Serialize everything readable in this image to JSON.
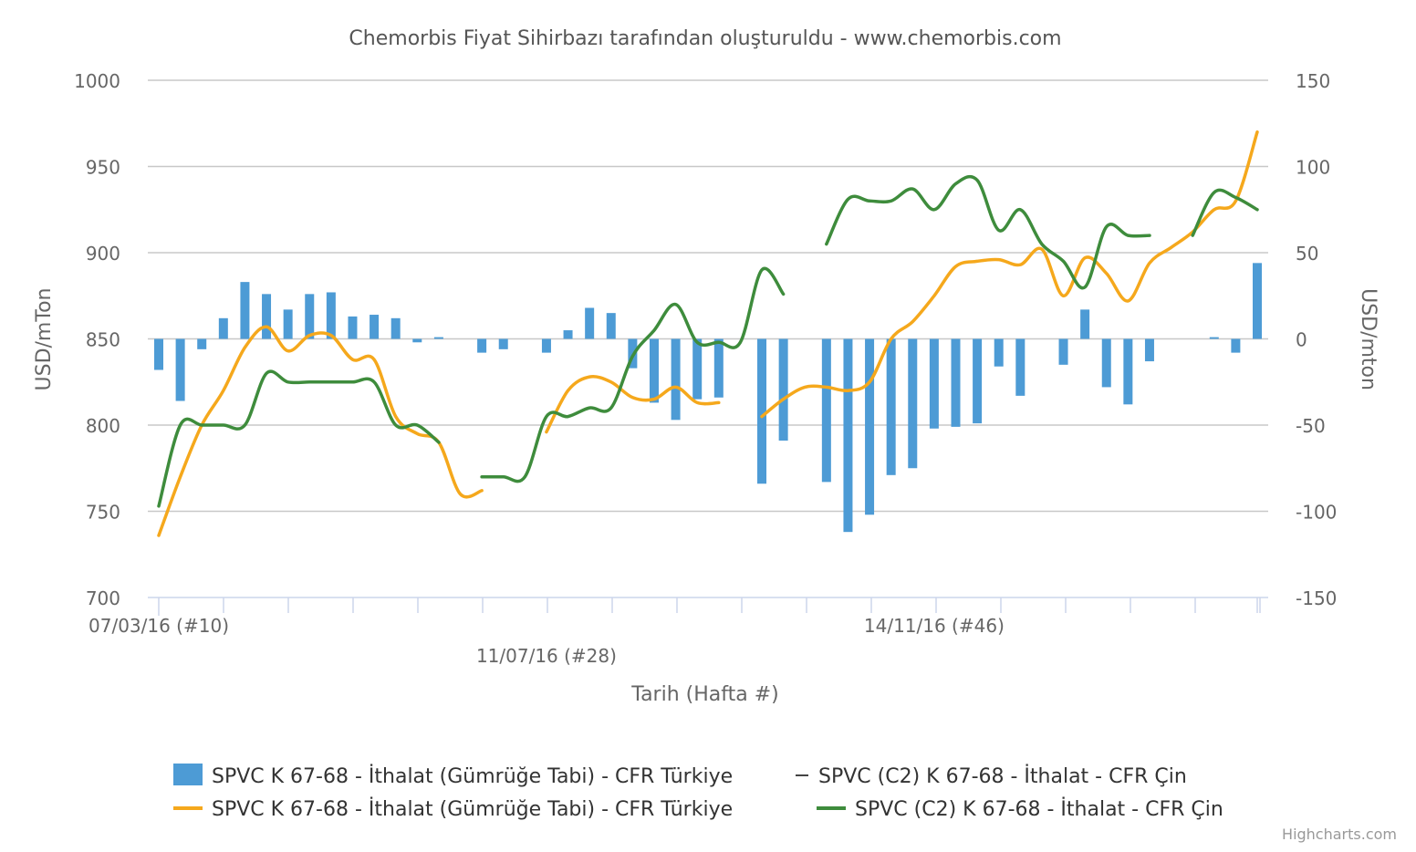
{
  "chart_data": {
    "type": "bar+line",
    "title": "Chemorbis Fiyat Sihirbazı tarafından oluşturuldu - www.chemorbis.com",
    "xlabel": "Tarih (Hafta #)",
    "ylabel_left": "USD/mTon",
    "ylabel_right": "USD/mton",
    "y_left_range": [
      700,
      1000
    ],
    "y_left_ticks": [
      "700",
      "750",
      "800",
      "850",
      "900",
      "950",
      "1000"
    ],
    "y_right_range": [
      -150,
      150
    ],
    "y_right_ticks": [
      "-150",
      "-100",
      "-50",
      "0",
      "50",
      "100",
      "150"
    ],
    "grid": true,
    "x_week_range": [
      10,
      61
    ],
    "x_tick_labels": [
      {
        "label": "07/03/16 (#10)",
        "week": 10
      },
      {
        "label": "11/07/16 (#28)",
        "week": 28
      },
      {
        "label": "14/11/16 (#46)",
        "week": 46
      }
    ],
    "legend": {
      "placement": "bottom",
      "items": [
        {
          "label": "SPVC K 67-68 - İthalat (Gümrüğe Tabi) - CFR Türkiye",
          "kind": "bar",
          "color": "#4d9bd5"
        },
        {
          "label": "SPVC (C2) K 67-68 - İthalat - CFR Çin",
          "kind": "dash",
          "color": "#444444"
        },
        {
          "label": "SPVC K 67-68 - İthalat (Gümrüğe Tabi) - CFR Türkiye",
          "kind": "line",
          "color": "#f5a81c"
        },
        {
          "label": "SPVC (C2) K 67-68 - İthalat - CFR Çin",
          "kind": "line",
          "color": "#3e8c3c"
        }
      ]
    },
    "credit": "Highcharts.com",
    "series": [
      {
        "name": "SPVC K 67-68 - İthalat (Gümrüğe Tabi) - CFR Türkiye",
        "type": "bar",
        "axis": "right",
        "color": "#4d9bd5",
        "x": [
          10,
          11,
          12,
          13,
          14,
          15,
          16,
          17,
          18,
          19,
          20,
          21,
          22,
          23,
          24,
          25,
          26,
          27,
          28,
          29,
          30,
          31,
          32,
          33,
          34,
          35,
          36,
          37,
          38,
          39,
          40,
          41,
          42,
          43,
          44,
          45,
          46,
          47,
          48,
          49,
          50,
          51,
          52,
          53,
          54,
          55,
          56,
          57,
          58,
          59,
          60,
          61
        ],
        "values": [
          -18,
          -36,
          -6,
          12,
          33,
          26,
          17,
          26,
          27,
          13,
          14,
          12,
          -2,
          1,
          null,
          -8,
          -6,
          null,
          -8,
          5,
          18,
          15,
          -17,
          -37,
          -47,
          -35,
          -34,
          null,
          -84,
          -59,
          null,
          -83,
          -112,
          -102,
          -79,
          -75,
          -52,
          -51,
          -49,
          -16,
          -33,
          null,
          -15,
          17,
          -28,
          -38,
          -13,
          null,
          null,
          1,
          -8,
          44
        ]
      },
      {
        "name": "SPVC K 67-68 - İthalat (Gümrüğe Tabi) - CFR Türkiye",
        "type": "line",
        "axis": "left",
        "color": "#f5a81c",
        "x": [
          10,
          11,
          12,
          13,
          14,
          15,
          16,
          17,
          18,
          19,
          20,
          21,
          22,
          23,
          24,
          25,
          26,
          28,
          29,
          30,
          31,
          32,
          33,
          34,
          35,
          36,
          37,
          38,
          39,
          40,
          41,
          42,
          43,
          44,
          45,
          46,
          47,
          48,
          49,
          50,
          51,
          52,
          53,
          54,
          55,
          56,
          57,
          58,
          59,
          60,
          61
        ],
        "values": [
          736,
          770,
          800,
          820,
          845,
          857,
          843,
          852,
          852,
          838,
          838,
          805,
          795,
          790,
          760,
          762,
          null,
          796,
          820,
          828,
          825,
          816,
          815,
          822,
          813,
          813,
          null,
          805,
          815,
          822,
          822,
          820,
          825,
          850,
          860,
          875,
          892,
          895,
          896,
          893,
          902,
          875,
          897,
          888,
          872,
          894,
          903,
          912,
          925,
          930,
          970
        ]
      },
      {
        "name": "SPVC (C2) K 67-68 - İthalat - CFR Çin",
        "type": "line",
        "axis": "left",
        "color": "#3e8c3c",
        "x": [
          10,
          11,
          12,
          13,
          14,
          15,
          16,
          17,
          18,
          19,
          20,
          21,
          22,
          23,
          24,
          25,
          26,
          27,
          28,
          29,
          30,
          31,
          32,
          33,
          34,
          35,
          36,
          37,
          38,
          39,
          40,
          41,
          42,
          43,
          44,
          45,
          46,
          47,
          48,
          49,
          50,
          51,
          52,
          53,
          54,
          55,
          56,
          57,
          58,
          59,
          60,
          61
        ],
        "values": [
          753,
          800,
          800,
          800,
          800,
          830,
          825,
          825,
          825,
          825,
          825,
          800,
          800,
          790,
          null,
          770,
          770,
          770,
          805,
          805,
          810,
          810,
          840,
          855,
          870,
          848,
          848,
          848,
          890,
          876,
          null,
          905,
          931,
          930,
          930,
          937,
          925,
          940,
          942,
          913,
          925,
          905,
          895,
          880,
          915,
          910,
          910,
          null,
          910,
          935,
          932,
          925
        ]
      }
    ]
  }
}
